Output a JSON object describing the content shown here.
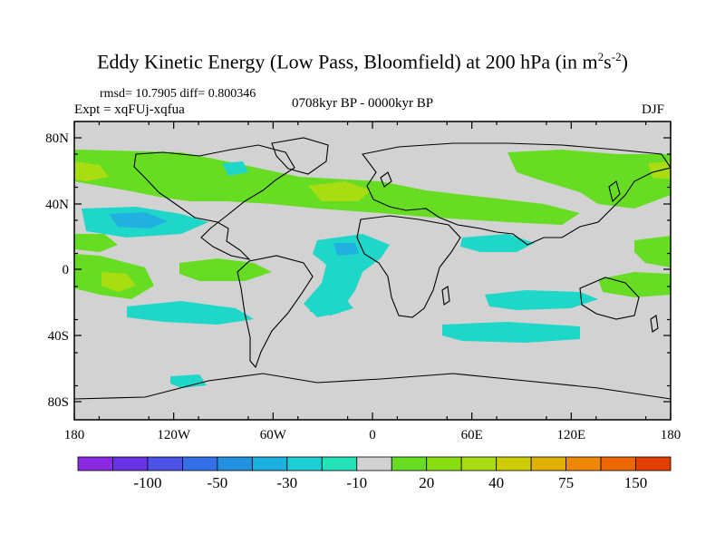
{
  "title": {
    "main": "Eddy Kinetic Energy (Low Pass, Bloomfield) at 200 hPa (in m",
    "sup1": "2",
    "mid": "s",
    "sup2": "-2",
    "end": ")"
  },
  "stats": {
    "rmsd_diff": "rmsd= 10.7905 diff= 0.800346"
  },
  "experiment": "Expt = xqFUj-xqfua",
  "period": "0708kyr BP - 0000kyr BP",
  "season": "DJF",
  "lat_ticks": [
    "80N",
    "40N",
    "0",
    "40S",
    "80S"
  ],
  "lon_ticks": [
    "180",
    "120W",
    "60W",
    "0",
    "60E",
    "120E",
    "180"
  ],
  "colorbar": {
    "colors": [
      "#8a2be2",
      "#6a32e6",
      "#4f52e8",
      "#3470e6",
      "#2490e0",
      "#1cb0e0",
      "#1ccfd6",
      "#22e3b8",
      "#d2d2d2",
      "#66dd22",
      "#88dd11",
      "#aadd11",
      "#cccc00",
      "#e0b000",
      "#ee8800",
      "#ee6600",
      "#e24000"
    ],
    "labels": [
      "-100",
      "-50",
      "-30",
      "-10",
      "20",
      "40",
      "75",
      "150"
    ],
    "label_boundaries": [
      2,
      4,
      6,
      8,
      10,
      12,
      14,
      16
    ]
  },
  "colors": {
    "land_bg": "#d2d2d2",
    "neg_fill": "#1ed7c8",
    "neg_deep": "#22b0e0",
    "pos_fill": "#66dd22",
    "pos_mid": "#aadd11",
    "pos_high": "#cccc00"
  }
}
